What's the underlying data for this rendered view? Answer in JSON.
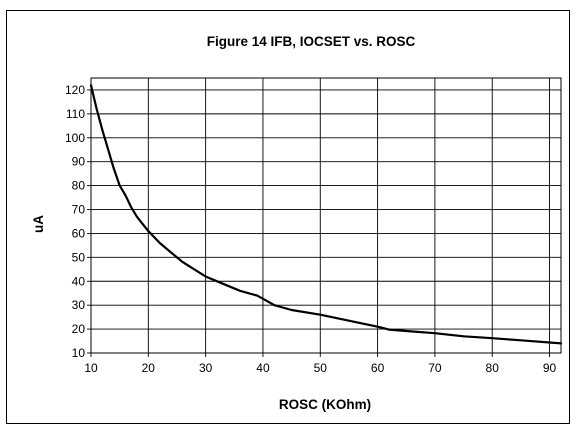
{
  "chart_data": {
    "type": "line",
    "title": "Figure 14 IFB, IOCSET vs. ROSC",
    "xlabel": "ROSC (KOhm)",
    "ylabel": "uA",
    "xlim": [
      10,
      92
    ],
    "ylim": [
      10,
      125
    ],
    "x_ticks": [
      10,
      20,
      30,
      40,
      50,
      60,
      70,
      80,
      90
    ],
    "y_ticks": [
      10,
      20,
      30,
      40,
      50,
      60,
      70,
      80,
      90,
      100,
      110,
      120
    ],
    "grid": true,
    "legend": "none",
    "series": [
      {
        "x": [
          10,
          11,
          12,
          13,
          14,
          15,
          16,
          17,
          18,
          19,
          20,
          22,
          24,
          26,
          28,
          30,
          33,
          36,
          39,
          42,
          45,
          50,
          55,
          60,
          62,
          65,
          70,
          75,
          80,
          85,
          92
        ],
        "y": [
          122,
          112,
          103,
          95,
          87,
          80,
          76,
          71,
          67,
          64,
          61,
          56,
          52,
          48,
          45,
          42,
          39,
          36,
          34,
          30,
          28,
          26,
          23.5,
          21,
          19.8,
          19.2,
          18.3,
          17,
          16.2,
          15.3,
          14
        ]
      }
    ]
  }
}
